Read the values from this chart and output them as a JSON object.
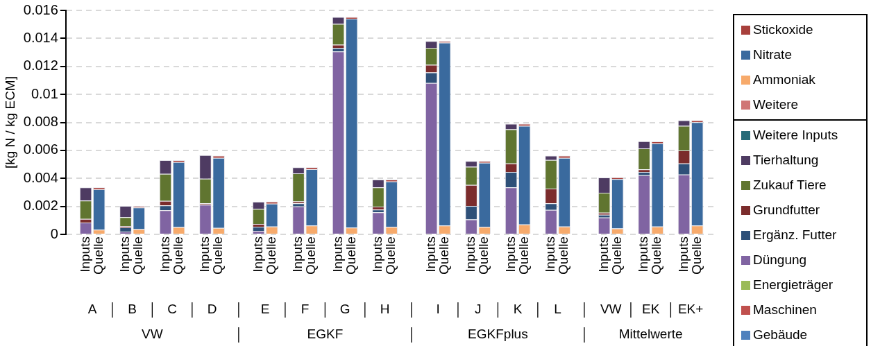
{
  "chart_data": {
    "type": "bar",
    "ylabel": "[kg N / kg ECM]",
    "stacked": true,
    "grid": "y",
    "legend": "right",
    "categories": [
      null,
      "Inputs",
      "Quelle",
      null,
      "Inputs",
      "Quelle",
      null,
      "Inputs",
      "Quelle",
      null,
      "Inputs",
      "Quelle",
      null,
      null,
      "Inputs",
      "Quelle",
      null,
      "Inputs",
      "Quelle",
      null,
      "Inputs",
      "Quelle",
      null,
      "Inputs",
      "Quelle",
      null,
      null,
      "Inputs",
      "Quelle",
      null,
      "Inputs",
      "Quelle",
      null,
      "Inputs",
      "Quelle",
      null,
      "Inputs",
      "Quelle",
      null,
      null,
      "Inputs",
      "Quelle",
      null,
      "Inputs",
      "Quelle",
      null,
      "Inputs",
      "Quelle",
      null
    ],
    "ylim": [
      0,
      0.016
    ],
    "yticks": [
      0,
      0.002,
      0.004,
      0.006,
      0.008,
      0.01,
      0.012,
      0.014,
      0.016
    ],
    "annotations": [
      "A",
      "B",
      "C",
      "D",
      "E",
      "F",
      "G",
      "H",
      "I",
      "J",
      "K",
      "L",
      "VW",
      "EK",
      "EK+",
      "VW",
      "EGKF",
      "EGKFplus",
      "Mittelwerte"
    ],
    "series": [
      {
        "name": "Gebäude",
        "color": "#4f81bd",
        "values": [
          null,
          0,
          null,
          null,
          0,
          null,
          null,
          0,
          null,
          null,
          0,
          null,
          null,
          null,
          0,
          null,
          null,
          0,
          null,
          null,
          0,
          null,
          null,
          0,
          null,
          null,
          null,
          0,
          null,
          null,
          0,
          null,
          null,
          0,
          null,
          null,
          0,
          null,
          null,
          null,
          0,
          null,
          null,
          0,
          null,
          null,
          0,
          null,
          null
        ]
      },
      {
        "name": "Maschinen",
        "color": "#c0504d",
        "values": [
          null,
          0,
          null,
          null,
          0,
          null,
          null,
          0,
          null,
          null,
          0,
          null,
          null,
          null,
          0,
          null,
          null,
          0,
          null,
          null,
          0,
          null,
          null,
          0,
          null,
          null,
          null,
          0,
          null,
          null,
          0,
          null,
          null,
          0,
          null,
          null,
          0,
          null,
          null,
          null,
          0,
          null,
          null,
          0,
          null,
          null,
          0,
          null,
          null
        ]
      },
      {
        "name": "Energieträger",
        "color": "#9bbb59",
        "values": [
          null,
          0,
          null,
          null,
          0,
          null,
          null,
          0,
          null,
          null,
          0,
          null,
          null,
          null,
          0,
          null,
          null,
          0,
          null,
          null,
          0,
          null,
          null,
          0,
          null,
          null,
          null,
          0,
          null,
          null,
          0,
          null,
          null,
          0,
          null,
          null,
          0,
          null,
          null,
          null,
          0,
          null,
          null,
          0,
          null,
          null,
          0,
          null,
          null
        ]
      },
      {
        "name": "Düngung",
        "color": "#8064a2",
        "values": [
          null,
          0.00085,
          null,
          null,
          0.0002,
          null,
          null,
          0.00173,
          null,
          null,
          0.00212,
          null,
          null,
          null,
          0.00025,
          null,
          null,
          0.002,
          null,
          null,
          0.01307,
          null,
          null,
          0.00158,
          null,
          null,
          null,
          0.01081,
          null,
          null,
          0.00107,
          null,
          null,
          0.00336,
          null,
          null,
          0.00175,
          null,
          null,
          null,
          0.0012,
          null,
          null,
          0.00422,
          null,
          null,
          0.00427,
          null,
          null
        ]
      },
      {
        "name": "Ergänz. Futter",
        "color": "#2e5078",
        "values": [
          null,
          0,
          null,
          null,
          0.0003,
          null,
          null,
          0.00034,
          null,
          null,
          0,
          null,
          null,
          null,
          0.0003,
          null,
          null,
          0.00022,
          null,
          null,
          0.00024,
          null,
          null,
          0.0002,
          null,
          null,
          null,
          0.00076,
          null,
          null,
          0.00097,
          null,
          null,
          0.0011,
          null,
          null,
          0.00047,
          null,
          null,
          null,
          0.0002,
          null,
          null,
          0.00024,
          null,
          null,
          0.0008,
          null,
          null
        ]
      },
      {
        "name": "Grundfutter",
        "color": "#7b2c2c",
        "values": [
          null,
          0.00025,
          null,
          null,
          0.0001,
          null,
          null,
          0.00032,
          null,
          null,
          0.0001,
          null,
          null,
          null,
          0.0002,
          null,
          null,
          0.00014,
          null,
          null,
          0.00024,
          null,
          null,
          0.0002,
          null,
          null,
          null,
          0.00054,
          null,
          null,
          0.00149,
          null,
          null,
          0.00061,
          null,
          null,
          0.00105,
          null,
          null,
          null,
          0.00015,
          null,
          null,
          0.00019,
          null,
          null,
          0.00093,
          null,
          null
        ]
      },
      {
        "name": "Zukauf Tiere",
        "color": "#607530",
        "values": [
          null,
          0.00132,
          null,
          null,
          0.00063,
          null,
          null,
          0.00193,
          null,
          null,
          0.00176,
          null,
          null,
          null,
          0.00107,
          null,
          null,
          0.002,
          null,
          null,
          0.00149,
          null,
          null,
          0.00138,
          null,
          null,
          null,
          0.00121,
          null,
          null,
          0.0013,
          null,
          null,
          0.00244,
          null,
          null,
          0.00204,
          null,
          null,
          null,
          0.00142,
          null,
          null,
          0.0015,
          null,
          null,
          0.00175,
          null,
          null
        ]
      },
      {
        "name": "Tierhaltung",
        "color": "#4e3b62",
        "values": [
          null,
          0.00094,
          null,
          null,
          0.0008,
          null,
          null,
          0.00098,
          null,
          null,
          0.00168,
          null,
          null,
          null,
          0.00051,
          null,
          null,
          0.00044,
          null,
          null,
          0.00049,
          null,
          null,
          0.00056,
          null,
          null,
          null,
          0.00049,
          null,
          null,
          0.00041,
          null,
          null,
          0.00039,
          null,
          null,
          0.00032,
          null,
          null,
          null,
          0.0011,
          null,
          null,
          0.0005,
          null,
          null,
          0.0004,
          null,
          null
        ]
      },
      {
        "name": "Weitere Inputs",
        "color": "#276b78",
        "values": [
          null,
          0,
          null,
          null,
          0,
          null,
          null,
          0,
          null,
          null,
          0,
          null,
          null,
          null,
          0,
          null,
          null,
          0,
          null,
          null,
          0,
          null,
          null,
          0,
          null,
          null,
          null,
          0,
          null,
          null,
          0,
          null,
          null,
          0,
          null,
          null,
          0,
          null,
          null,
          null,
          0,
          null,
          null,
          0,
          null,
          null,
          0,
          null,
          null
        ]
      },
      {
        "name": "Weitere",
        "color": "#d07675",
        "values": [
          null,
          null,
          0,
          null,
          null,
          0,
          null,
          null,
          0,
          null,
          null,
          0,
          null,
          null,
          null,
          0,
          null,
          null,
          0,
          null,
          null,
          0,
          null,
          null,
          0,
          null,
          null,
          null,
          0,
          null,
          null,
          0,
          null,
          null,
          0,
          null,
          null,
          0,
          null,
          null,
          null,
          0,
          null,
          null,
          0,
          null,
          null,
          0,
          null
        ]
      },
      {
        "name": "Ammoniak",
        "color": "#f7aa6b",
        "values": [
          null,
          null,
          0.00034,
          null,
          null,
          0.00037,
          null,
          null,
          0.00053,
          null,
          null,
          0.00046,
          null,
          null,
          null,
          0.00056,
          null,
          null,
          0.00064,
          null,
          null,
          0.00049,
          null,
          null,
          0.00054,
          null,
          null,
          null,
          0.00064,
          null,
          null,
          0.00054,
          null,
          null,
          0.00071,
          null,
          null,
          0.00056,
          null,
          null,
          null,
          0.00042,
          null,
          null,
          0.00056,
          null,
          null,
          0.00063,
          null
        ]
      },
      {
        "name": "Nitrate",
        "color": "#3a6a9e",
        "values": [
          null,
          null,
          0.00288,
          null,
          null,
          0.00155,
          null,
          null,
          0.00464,
          null,
          null,
          0.00501,
          null,
          null,
          null,
          0.00164,
          null,
          null,
          0.00402,
          null,
          null,
          0.01492,
          null,
          null,
          0.00324,
          null,
          null,
          null,
          0.01306,
          null,
          null,
          0.00458,
          null,
          null,
          0.00704,
          null,
          null,
          0.00491,
          null,
          null,
          null,
          0.00353,
          null,
          null,
          0.00595,
          null,
          null,
          0.00739,
          null
        ]
      },
      {
        "name": "Stickoxide",
        "color": "#a8403c",
        "values": [
          null,
          null,
          0.00014,
          null,
          null,
          0.0001,
          null,
          null,
          0.00013,
          null,
          null,
          0.00016,
          null,
          null,
          null,
          0.00014,
          null,
          null,
          0.00014,
          null,
          null,
          0.00012,
          null,
          null,
          0.00014,
          null,
          null,
          null,
          0.00011,
          null,
          null,
          0.00012,
          null,
          null,
          0.00015,
          null,
          null,
          0.00016,
          null,
          null,
          null,
          0.00013,
          null,
          null,
          0.00013,
          null,
          null,
          0.00013,
          null
        ]
      }
    ]
  }
}
